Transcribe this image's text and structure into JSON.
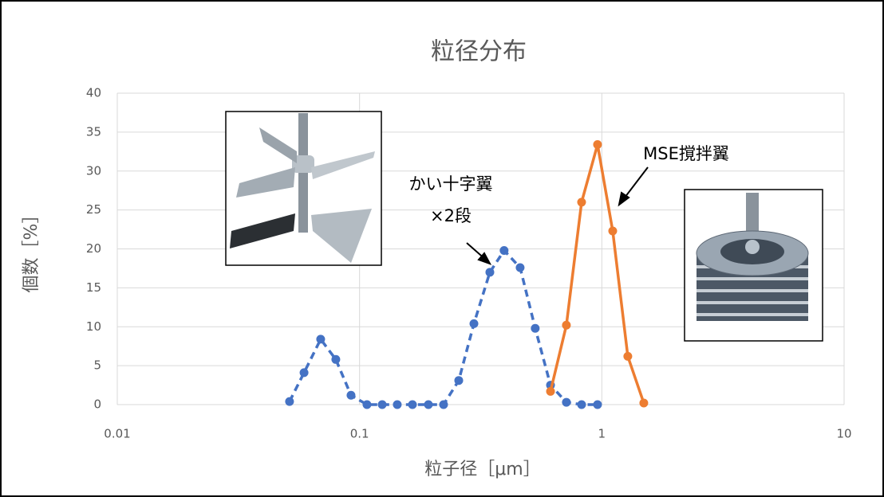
{
  "chart_data": {
    "type": "line",
    "title": "粒径分布",
    "xlabel": "粒子径［μm］",
    "ylabel": "個数［%］",
    "xscale": "log",
    "xlim": [
      0.01,
      10
    ],
    "xticks": [
      0.01,
      0.1,
      1,
      10
    ],
    "ylim": [
      0,
      40
    ],
    "yticks": [
      0,
      5,
      10,
      15,
      20,
      25,
      30,
      35,
      40
    ],
    "grid": true,
    "annotations": [
      "かい十字翼",
      "×2段",
      "MSE撹拌翼"
    ],
    "series": [
      {
        "color": "#4472c4",
        "dashed": true,
        "x": [
          0.0514,
          0.059,
          0.0691,
          0.0798,
          0.0922,
          0.1073,
          0.124,
          0.1431,
          0.1653,
          0.1924,
          0.2222,
          0.2567,
          0.2965,
          0.345,
          0.395,
          0.46,
          0.531,
          0.614,
          0.714,
          0.825,
          0.96
        ],
        "values": [
          0.4,
          4.1,
          8.4,
          5.8,
          1.2,
          0,
          0,
          0,
          0,
          0,
          0,
          3.1,
          10.4,
          17,
          19.8,
          17.6,
          9.8,
          2.5,
          0.3,
          0,
          0
        ]
      },
      {
        "color": "#ed7d31",
        "dashed": false,
        "x": [
          0.614,
          0.714,
          0.825,
          0.96,
          1.109,
          1.28,
          1.49
        ],
        "values": [
          1.7,
          10.2,
          26,
          33.4,
          22.3,
          6.2,
          0.2
        ]
      }
    ]
  }
}
